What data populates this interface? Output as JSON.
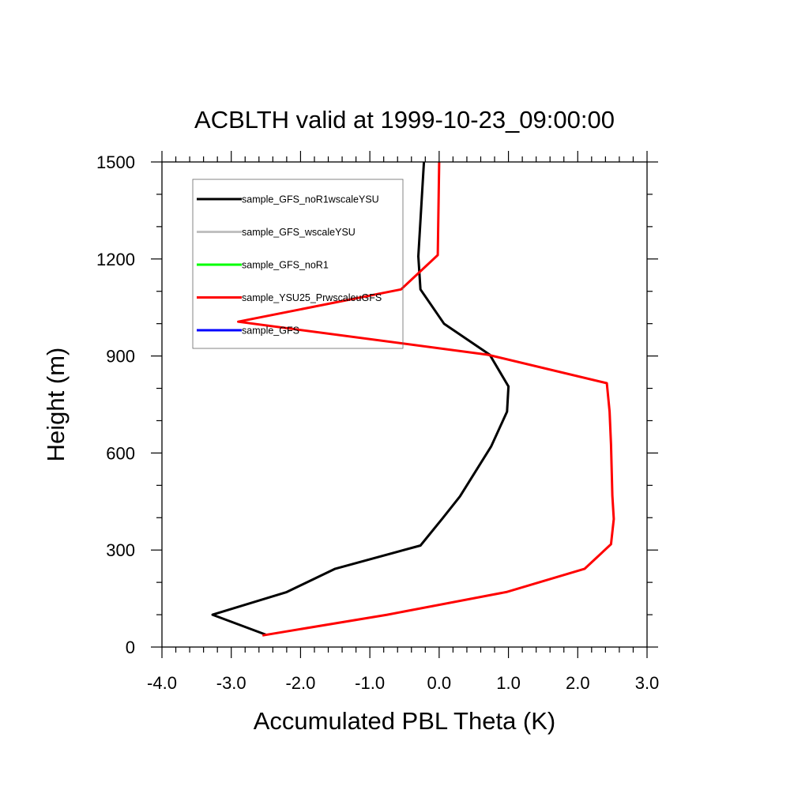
{
  "chart_data": {
    "type": "line",
    "title": "ACBLTH valid at 1999-10-23_09:00:00",
    "xlabel": "Accumulated PBL Theta (K)",
    "ylabel": "Height (m)",
    "xlim": [
      -4.0,
      3.0
    ],
    "ylim": [
      0,
      1500
    ],
    "xticks": [
      -4.0,
      -3.0,
      -2.0,
      -1.0,
      0.0,
      1.0,
      2.0,
      3.0
    ],
    "xtick_labels": [
      "-4.0",
      "-3.0",
      "-2.0",
      "-1.0",
      "0.0",
      "1.0",
      "2.0",
      "3.0"
    ],
    "yticks": [
      0,
      300,
      600,
      900,
      1200,
      1500
    ],
    "ytick_labels": [
      "0",
      "300",
      "600",
      "900",
      "1200",
      "1500"
    ],
    "grid": false,
    "legend_position": "top-left",
    "series": [
      {
        "name": "sample_GFS_noR1wscaleYSU",
        "color": "#000000",
        "points": [
          [
            -2.5,
            38
          ],
          [
            -3.27,
            100
          ],
          [
            -2.2,
            170
          ],
          [
            -1.5,
            242
          ],
          [
            -0.27,
            314
          ],
          [
            0.05,
            398
          ],
          [
            0.3,
            466
          ],
          [
            0.75,
            620
          ],
          [
            0.98,
            728
          ],
          [
            1.0,
            806
          ],
          [
            0.73,
            904
          ],
          [
            0.07,
            1000
          ],
          [
            -0.27,
            1106
          ],
          [
            -0.3,
            1208
          ],
          [
            -0.22,
            1500
          ]
        ]
      },
      {
        "name": "sample_GFS_wscaleYSU",
        "color": "#c0c0c0",
        "points": []
      },
      {
        "name": "sample_GFS_noR1",
        "color": "#00ff00",
        "points": []
      },
      {
        "name": "sample_YSU25_PrwscaleuGFS",
        "color": "#ff0000",
        "points": [
          [
            -2.55,
            36
          ],
          [
            -0.75,
            100
          ],
          [
            0.97,
            170
          ],
          [
            2.1,
            242
          ],
          [
            2.48,
            318
          ],
          [
            2.52,
            396
          ],
          [
            2.5,
            468
          ],
          [
            2.48,
            626
          ],
          [
            2.46,
            728
          ],
          [
            2.42,
            816
          ],
          [
            0.7,
            904
          ],
          [
            -2.9,
            1006
          ],
          [
            -0.55,
            1106
          ],
          [
            -0.02,
            1212
          ],
          [
            0.0,
            1500
          ]
        ]
      },
      {
        "name": "sample_GFS",
        "color": "#0000ff",
        "points": []
      }
    ]
  }
}
